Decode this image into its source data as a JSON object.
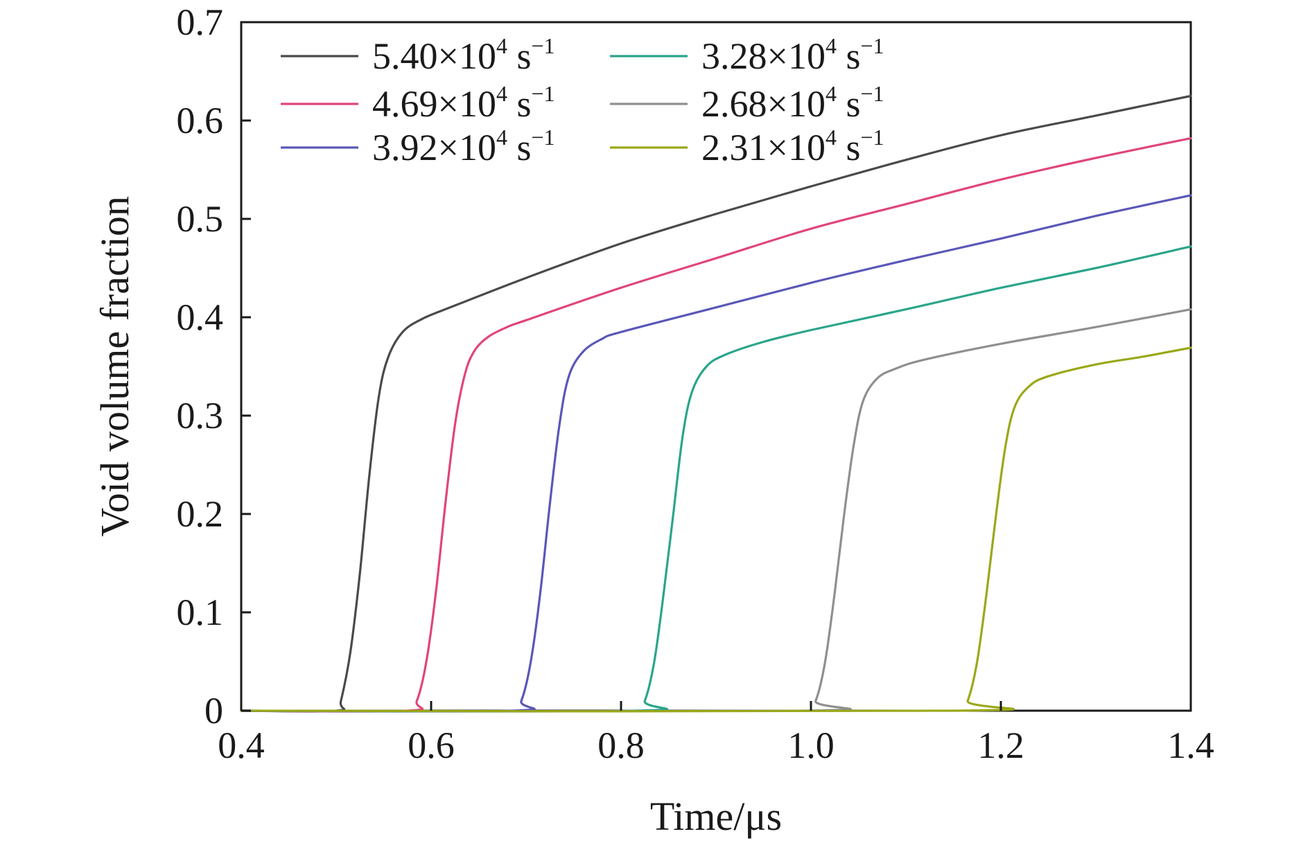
{
  "chart_data": {
    "type": "line",
    "title": "",
    "xlabel": "Time/μs",
    "ylabel": "Void volume fraction",
    "xlim": [
      0.4,
      1.4
    ],
    "ylim": [
      0,
      0.7
    ],
    "xticks": [
      "0.4",
      "0.6",
      "0.8",
      "1.0",
      "1.2",
      "1.4"
    ],
    "yticks": [
      "0",
      "0.1",
      "0.2",
      "0.3",
      "0.4",
      "0.5",
      "0.6",
      "0.7"
    ],
    "legend_placement": "top-left, two columns",
    "grid": false,
    "series": [
      {
        "name": "5.40×10",
        "exp": "4",
        "unit": " s",
        "unit_exp": "−1",
        "color": "#4a4a4a",
        "x": [
          0.4,
          0.5,
          0.505,
          0.515,
          0.525,
          0.535,
          0.545,
          0.555,
          0.57,
          0.59,
          0.62,
          0.7,
          0.8,
          0.9,
          1.0,
          1.1,
          1.2,
          1.3,
          1.4
        ],
        "y": [
          0,
          0,
          0.01,
          0.06,
          0.14,
          0.24,
          0.32,
          0.36,
          0.385,
          0.398,
          0.41,
          0.44,
          0.475,
          0.505,
          0.533,
          0.56,
          0.585,
          0.605,
          0.625
        ]
      },
      {
        "name": "4.69×10",
        "exp": "4",
        "unit": " s",
        "unit_exp": "−1",
        "color": "#e0457b",
        "x": [
          0.4,
          0.575,
          0.585,
          0.595,
          0.605,
          0.615,
          0.625,
          0.635,
          0.645,
          0.66,
          0.68,
          0.7,
          0.8,
          0.9,
          1.0,
          1.1,
          1.2,
          1.3,
          1.4
        ],
        "y": [
          0,
          0,
          0.01,
          0.05,
          0.12,
          0.21,
          0.29,
          0.34,
          0.365,
          0.38,
          0.39,
          0.397,
          0.43,
          0.46,
          0.49,
          0.515,
          0.54,
          0.562,
          0.582
        ]
      },
      {
        "name": "3.92×10",
        "exp": "4",
        "unit": " s",
        "unit_exp": "−1",
        "color": "#5a57b8",
        "x": [
          0.4,
          0.685,
          0.695,
          0.705,
          0.715,
          0.725,
          0.735,
          0.745,
          0.76,
          0.78,
          0.8,
          0.9,
          1.0,
          1.1,
          1.2,
          1.3,
          1.4
        ],
        "y": [
          0,
          0,
          0.01,
          0.05,
          0.12,
          0.21,
          0.29,
          0.34,
          0.365,
          0.378,
          0.385,
          0.41,
          0.435,
          0.458,
          0.48,
          0.503,
          0.524
        ]
      },
      {
        "name": "3.28×10",
        "exp": "4",
        "unit": " s",
        "unit_exp": "−1",
        "color": "#2aa58a",
        "x": [
          0.4,
          0.815,
          0.825,
          0.835,
          0.845,
          0.855,
          0.865,
          0.875,
          0.89,
          0.91,
          0.95,
          1.0,
          1.1,
          1.2,
          1.3,
          1.4
        ],
        "y": [
          0,
          0,
          0.01,
          0.05,
          0.12,
          0.2,
          0.28,
          0.325,
          0.35,
          0.362,
          0.375,
          0.387,
          0.408,
          0.43,
          0.45,
          0.472
        ]
      },
      {
        "name": "2.68×10",
        "exp": "4",
        "unit": " s",
        "unit_exp": "−1",
        "color": "#8f8f8f",
        "x": [
          0.4,
          0.995,
          1.005,
          1.015,
          1.025,
          1.035,
          1.045,
          1.055,
          1.07,
          1.09,
          1.12,
          1.2,
          1.3,
          1.4
        ],
        "y": [
          0,
          0,
          0.01,
          0.05,
          0.12,
          0.2,
          0.27,
          0.315,
          0.338,
          0.348,
          0.357,
          0.373,
          0.39,
          0.408
        ]
      },
      {
        "name": "2.31×10",
        "exp": "4",
        "unit": " s",
        "unit_exp": "−1",
        "color": "#9aa818",
        "x": [
          0.4,
          1.155,
          1.165,
          1.175,
          1.185,
          1.195,
          1.205,
          1.215,
          1.23,
          1.25,
          1.3,
          1.35,
          1.4
        ],
        "y": [
          0,
          0,
          0.01,
          0.05,
          0.12,
          0.2,
          0.27,
          0.31,
          0.33,
          0.34,
          0.352,
          0.36,
          0.369
        ]
      }
    ]
  }
}
